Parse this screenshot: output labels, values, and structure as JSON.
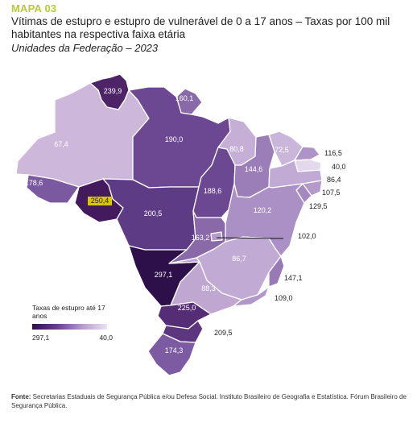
{
  "header": {
    "map_id": "MAPA 03",
    "title": "Vítimas de estupro e estupro de vulnerável de 0 a 17 anos – Taxas por 100 mil habitantes na respectiva faixa etária",
    "subtitle": "Unidades da Federação – 2023"
  },
  "map_data": {
    "type": "choropleth",
    "regions": [
      {
        "name": "RR",
        "value": 239.9,
        "label": "239,9",
        "color": "#4e2468"
      },
      {
        "name": "AP",
        "value": 160.1,
        "label": "160,1",
        "color": "#8a69a8"
      },
      {
        "name": "AM",
        "value": 67.4,
        "label": "67,4",
        "color": "#cdb8dc"
      },
      {
        "name": "PA",
        "value": 190.0,
        "label": "190,0",
        "color": "#6b4891"
      },
      {
        "name": "AC",
        "value": 178.6,
        "label": "178,6",
        "color": "#7a59a0"
      },
      {
        "name": "RO",
        "value": 250.4,
        "label": "250,4",
        "color": "#431a5e"
      },
      {
        "name": "MT",
        "value": 200.5,
        "label": "200,5",
        "color": "#5e3c85"
      },
      {
        "name": "TO",
        "value": 188.6,
        "label": "188,6",
        "color": "#6b4891"
      },
      {
        "name": "MA",
        "value": 80.8,
        "label": "80,8",
        "color": "#c5afd6"
      },
      {
        "name": "PI",
        "value": 144.6,
        "label": "144,6",
        "color": "#9b7eb8"
      },
      {
        "name": "CE",
        "value": 72.5,
        "label": "72,5",
        "color": "#cbb6db"
      },
      {
        "name": "RN",
        "value": 116.5,
        "label": "116,5",
        "color": "#ad93c6"
      },
      {
        "name": "PB",
        "value": 40.0,
        "label": "40,0",
        "color": "#e4d9ec"
      },
      {
        "name": "PE",
        "value": 86.4,
        "label": "86,4",
        "color": "#c1aad4"
      },
      {
        "name": "AL",
        "value": 107.5,
        "label": "107,5",
        "color": "#b39acb"
      },
      {
        "name": "SE",
        "value": 129.5,
        "label": "129,5",
        "color": "#a489bf"
      },
      {
        "name": "BA",
        "value": 120.2,
        "label": "120,2",
        "color": "#aa90c4"
      },
      {
        "name": "DF",
        "value": 102.0,
        "label": "102,0",
        "color": "#b59ccc"
      },
      {
        "name": "GO",
        "value": 163.2,
        "label": "163,2",
        "color": "#8a69a8"
      },
      {
        "name": "MG",
        "value": 86.7,
        "label": "86,7",
        "color": "#c1aad4"
      },
      {
        "name": "MS",
        "value": 297.1,
        "label": "297,1",
        "color": "#2d0f4a"
      },
      {
        "name": "ES",
        "value": 147.1,
        "label": "147,1",
        "color": "#987bb6"
      },
      {
        "name": "SP",
        "value": 88.3,
        "label": "88,3",
        "color": "#bfa7d2"
      },
      {
        "name": "RJ",
        "value": 109.0,
        "label": "109,0",
        "color": "#b198c9"
      },
      {
        "name": "PR",
        "value": 225.0,
        "label": "225,0",
        "color": "#552d74"
      },
      {
        "name": "SC",
        "value": 209.5,
        "label": "209,5",
        "color": "#5c3780"
      },
      {
        "name": "RS",
        "value": 174.3,
        "label": "174,3",
        "color": "#7c5ba2"
      }
    ],
    "highlighted": "RO",
    "highlight_color": "#d8c600"
  },
  "legend": {
    "title": "Taxas de estupro até 17 anos",
    "max_label": "297,1",
    "min_label": "40,0",
    "max_color": "#2d0f4a",
    "min_color": "#ece3f2"
  },
  "source": {
    "label": "Fonte:",
    "text": "Secretarias Estaduais de Segurança Pública e/ou Defesa Social. Instituto Brasileiro de Geografia e Estatística. Fórum Brasileiro de Segurança Pública."
  }
}
